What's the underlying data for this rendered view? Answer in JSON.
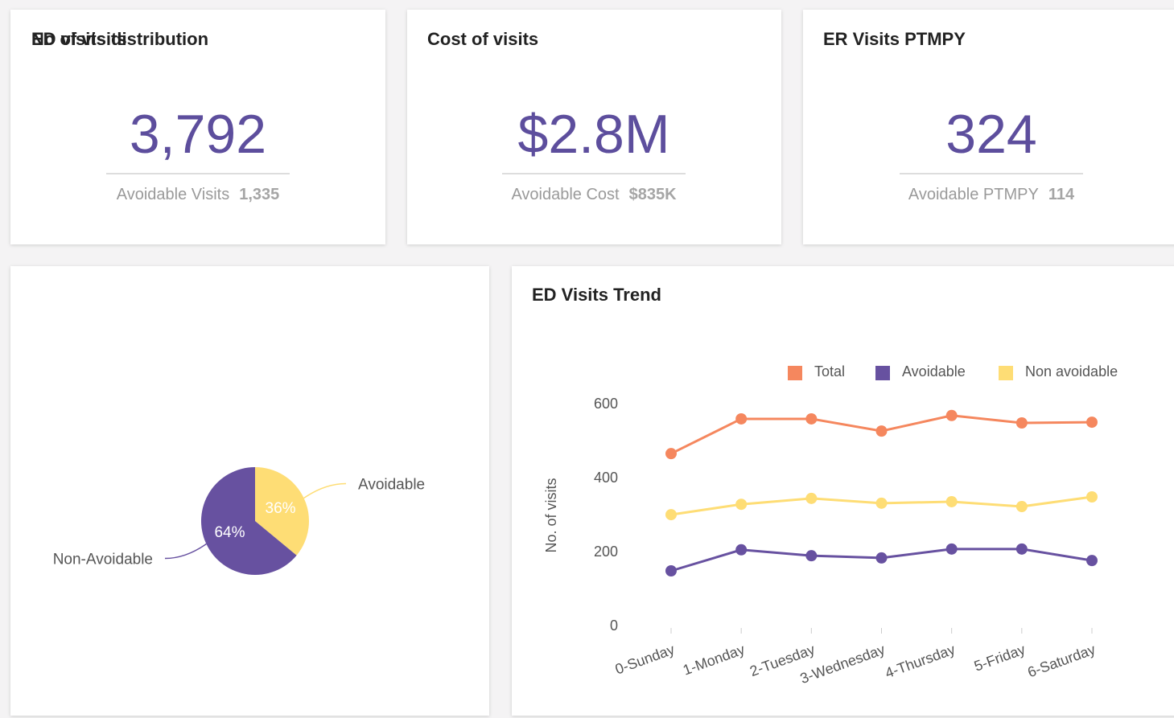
{
  "kpis": [
    {
      "title": "No of visits",
      "value": "3,792",
      "sub_label": "Avoidable Visits",
      "sub_value": "1,335"
    },
    {
      "title": "Cost of visits",
      "value": "$2.8M",
      "sub_label": "Avoidable Cost",
      "sub_value": "$835K"
    },
    {
      "title": "ER Visits PTMPY",
      "value": "324",
      "sub_label": "Avoidable PTMPY",
      "sub_value": "114"
    }
  ],
  "chart_data": [
    {
      "type": "pie",
      "title": "ED visits distribution",
      "categories": [
        "Avoidable",
        "Non-Avoidable"
      ],
      "values": [
        36,
        64
      ],
      "value_labels": [
        "36%",
        "64%"
      ],
      "colors": [
        "#fedd75",
        "#6751a0"
      ]
    },
    {
      "type": "line",
      "title": "ED Visits Trend",
      "y_label": "No. of visits",
      "categories": [
        "0-Sunday",
        "1-Monday",
        "2-Tuesday",
        "3-Wednesday",
        "4-Thursday",
        "5-Friday",
        "6-Saturday"
      ],
      "series": [
        {
          "name": "Total",
          "color": "#f5875e",
          "values": [
            467,
            561,
            561,
            528,
            570,
            550,
            552
          ]
        },
        {
          "name": "Avoidable",
          "color": "#6751a0",
          "values": [
            150,
            207,
            191,
            185,
            209,
            209,
            178
          ]
        },
        {
          "name": "Non avoidable",
          "color": "#fedd75",
          "values": [
            302,
            330,
            346,
            333,
            337,
            324,
            350
          ]
        }
      ],
      "ylim": [
        0,
        600
      ],
      "yticks": [
        0,
        200,
        400,
        600
      ],
      "grid": false
    }
  ]
}
